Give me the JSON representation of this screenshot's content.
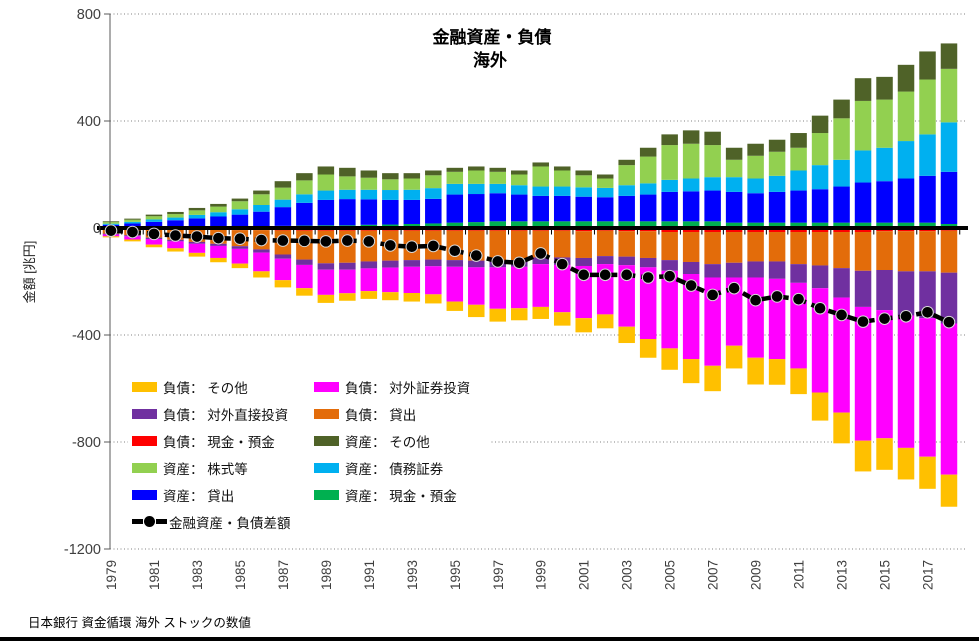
{
  "title": {
    "line1": "金融資産・負債",
    "line2": "海外"
  },
  "ylabel": "金額 [兆円]",
  "source_note": "日本銀行 資金循環 海外 ストックの数値",
  "chart_data": {
    "type": "bar",
    "subtype": "stacked-bar-with-line",
    "title": "金融資産・負債 海外",
    "ylabel": "金額 [兆円]",
    "ylim": [
      -1200,
      800
    ],
    "yticks": [
      800,
      400,
      0,
      -400,
      -800,
      -1200
    ],
    "grid": "dotted-horizontal",
    "legend_position": "inside-bottom-left",
    "years": [
      1979,
      1980,
      1981,
      1982,
      1983,
      1984,
      1985,
      1986,
      1987,
      1988,
      1989,
      1990,
      1991,
      1992,
      1993,
      1994,
      1995,
      1996,
      1997,
      1998,
      1999,
      2000,
      2001,
      2002,
      2003,
      2004,
      2005,
      2006,
      2007,
      2008,
      2009,
      2010,
      2011,
      2012,
      2013,
      2014,
      2015,
      2016,
      2017,
      2018
    ],
    "series": [
      {
        "name": "資産： 現金・預金",
        "side": "pos",
        "color": "#00B050",
        "values": [
          2,
          3,
          3,
          4,
          4,
          5,
          5,
          6,
          8,
          9,
          10,
          10,
          12,
          13,
          15,
          17,
          20,
          22,
          25,
          25,
          25,
          25,
          25,
          25,
          25,
          25,
          25,
          25,
          25,
          20,
          20,
          20,
          20,
          20,
          20,
          20,
          20,
          20,
          20,
          15
        ]
      },
      {
        "name": "資産： 貸出",
        "side": "pos",
        "color": "#0000FF",
        "values": [
          10,
          14,
          20,
          25,
          32,
          38,
          45,
          55,
          70,
          85,
          95,
          98,
          95,
          92,
          90,
          92,
          105,
          105,
          105,
          100,
          95,
          95,
          92,
          90,
          95,
          100,
          110,
          112,
          115,
          115,
          110,
          115,
          120,
          125,
          135,
          150,
          155,
          165,
          175,
          195
        ]
      },
      {
        "name": "資産： 債務証券",
        "side": "pos",
        "color": "#00B0F0",
        "values": [
          4,
          6,
          9,
          10,
          13,
          16,
          20,
          25,
          28,
          32,
          35,
          35,
          36,
          37,
          38,
          40,
          40,
          38,
          35,
          35,
          35,
          35,
          35,
          35,
          40,
          42,
          45,
          48,
          50,
          55,
          55,
          60,
          75,
          90,
          100,
          120,
          125,
          140,
          155,
          185
        ]
      },
      {
        "name": "資産： 株式等",
        "side": "pos",
        "color": "#92D050",
        "values": [
          6,
          8,
          12,
          13,
          17,
          21,
          30,
          40,
          45,
          52,
          60,
          50,
          45,
          40,
          42,
          48,
          45,
          50,
          45,
          40,
          75,
          60,
          45,
          35,
          75,
          100,
          130,
          130,
          120,
          65,
          85,
          90,
          85,
          120,
          155,
          185,
          180,
          185,
          205,
          200
        ]
      },
      {
        "name": "資産： その他",
        "side": "pos",
        "color": "#4F6228",
        "values": [
          3,
          4,
          6,
          8,
          9,
          10,
          10,
          14,
          24,
          27,
          30,
          32,
          27,
          23,
          20,
          18,
          15,
          15,
          15,
          15,
          15,
          15,
          18,
          15,
          20,
          33,
          40,
          50,
          50,
          45,
          45,
          45,
          55,
          65,
          70,
          85,
          85,
          100,
          105,
          95
        ]
      },
      {
        "name": "負債： 現金・預金",
        "side": "neg",
        "color": "#FF0000",
        "values": [
          4,
          5,
          6,
          6,
          7,
          7,
          8,
          8,
          9,
          10,
          10,
          10,
          10,
          10,
          10,
          10,
          10,
          10,
          10,
          10,
          10,
          10,
          12,
          10,
          12,
          12,
          15,
          15,
          15,
          15,
          15,
          15,
          15,
          15,
          15,
          15,
          12,
          12,
          12,
          10
        ]
      },
      {
        "name": "負債： 貸出",
        "side": "neg",
        "color": "#E36C0A",
        "values": [
          17,
          22,
          30,
          38,
          45,
          52,
          60,
          72,
          90,
          108,
          122,
          120,
          115,
          112,
          110,
          108,
          110,
          112,
          112,
          110,
          100,
          100,
          100,
          95,
          95,
          100,
          105,
          112,
          120,
          115,
          110,
          110,
          120,
          125,
          135,
          145,
          145,
          150,
          150,
          157
        ]
      },
      {
        "name": "負債： 対外直接投資",
        "side": "neg",
        "color": "#7030A0",
        "values": [
          3,
          4,
          5,
          6,
          7,
          8,
          10,
          12,
          16,
          20,
          24,
          26,
          26,
          26,
          25,
          25,
          25,
          25,
          25,
          25,
          25,
          28,
          30,
          30,
          32,
          35,
          40,
          45,
          50,
          55,
          60,
          65,
          70,
          85,
          110,
          135,
          150,
          165,
          175,
          190
        ]
      },
      {
        "name": "負債： 対外証券投資",
        "side": "neg",
        "color": "#FF00FF",
        "values": [
          7,
          12,
          21,
          26,
          34,
          45,
          55,
          70,
          80,
          87,
          94,
          88,
          85,
          92,
          98,
          105,
          130,
          140,
          155,
          155,
          160,
          177,
          195,
          188,
          230,
          268,
          290,
          318,
          330,
          255,
          300,
          300,
          320,
          390,
          430,
          500,
          479,
          495,
          518,
          565
        ]
      },
      {
        "name": "負債： その他",
        "side": "neg",
        "color": "#FFC000",
        "values": [
          4,
          7,
          10,
          12,
          14,
          16,
          17,
          23,
          27,
          28,
          30,
          28,
          29,
          30,
          32,
          34,
          35,
          46,
          48,
          45,
          45,
          50,
          53,
          52,
          61,
          70,
          80,
          90,
          95,
          85,
          100,
          96,
          96,
          105,
          115,
          115,
          118,
          118,
          120,
          120
        ]
      }
    ],
    "line": {
      "name": "金融資産・負債差額",
      "color": "#000000",
      "values": [
        -10,
        -15,
        -22,
        -28,
        -32,
        -38,
        -40,
        -45,
        -47,
        -48,
        -50,
        -47,
        -50,
        -65,
        -70,
        -67,
        -85,
        -103,
        -125,
        -130,
        -95,
        -135,
        -175,
        -175,
        -175,
        -185,
        -180,
        -215,
        -250,
        -225,
        -270,
        -256,
        -266,
        -300,
        -325,
        -350,
        -339,
        -330,
        -315,
        -352
      ]
    }
  },
  "legend": {
    "col1": [
      {
        "label": "負債： その他",
        "color": "#FFC000",
        "type": "box"
      },
      {
        "label": "負債： 対外直接投資",
        "color": "#7030A0",
        "type": "box"
      },
      {
        "label": "負債： 現金・預金",
        "color": "#FF0000",
        "type": "box"
      },
      {
        "label": "資産： 株式等",
        "color": "#92D050",
        "type": "box"
      },
      {
        "label": "資産： 貸出",
        "color": "#0000FF",
        "type": "box"
      },
      {
        "label": "金融資産・負債差額",
        "color": "#000000",
        "type": "line"
      }
    ],
    "col2": [
      {
        "label": "負債： 対外証券投資",
        "color": "#FF00FF",
        "type": "box"
      },
      {
        "label": "負債： 貸出",
        "color": "#E36C0A",
        "type": "box"
      },
      {
        "label": "資産： その他",
        "color": "#4F6228",
        "type": "box"
      },
      {
        "label": "資産： 債務証券",
        "color": "#00B0F0",
        "type": "box"
      },
      {
        "label": "資産： 現金・預金",
        "color": "#00B050",
        "type": "box"
      }
    ]
  }
}
